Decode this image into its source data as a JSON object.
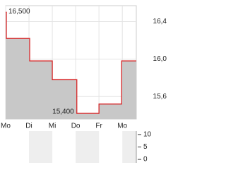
{
  "chart_data": [
    {
      "type": "line",
      "step": true,
      "x": [
        0,
        0.03,
        1.03,
        2.0,
        3.0,
        3.05,
        4.0,
        4.97
      ],
      "xlim": [
        0,
        5.6
      ],
      "xticks": [
        {
          "value": 0,
          "label": "Mo"
        },
        {
          "value": 1,
          "label": "Di"
        },
        {
          "value": 2,
          "label": "Mi"
        },
        {
          "value": 3,
          "label": "Do"
        },
        {
          "value": 4,
          "label": "Fr"
        },
        {
          "value": 5,
          "label": "Mo"
        }
      ],
      "series": [
        {
          "color": "#d62728",
          "fill": "#c8c8c8",
          "values": [
            16.5,
            16.22,
            15.98,
            15.78,
            15.78,
            15.42,
            15.52,
            15.98
          ]
        }
      ],
      "ylim": [
        15.36,
        16.57
      ],
      "yticks": [
        {
          "value": 15.6,
          "label": "15,6"
        },
        {
          "value": 16.0,
          "label": "16,0"
        },
        {
          "value": 16.4,
          "label": "16,4"
        }
      ],
      "annotations": [
        {
          "text": "16,500",
          "x": 0,
          "y": 16.5
        },
        {
          "text": "15,400",
          "x": 3.05,
          "y": 15.42
        }
      ],
      "grid": true
    },
    {
      "type": "bar",
      "values": [],
      "ylim": [
        -1.4,
        11.4
      ],
      "yticks": [
        0,
        5,
        10
      ]
    }
  ]
}
